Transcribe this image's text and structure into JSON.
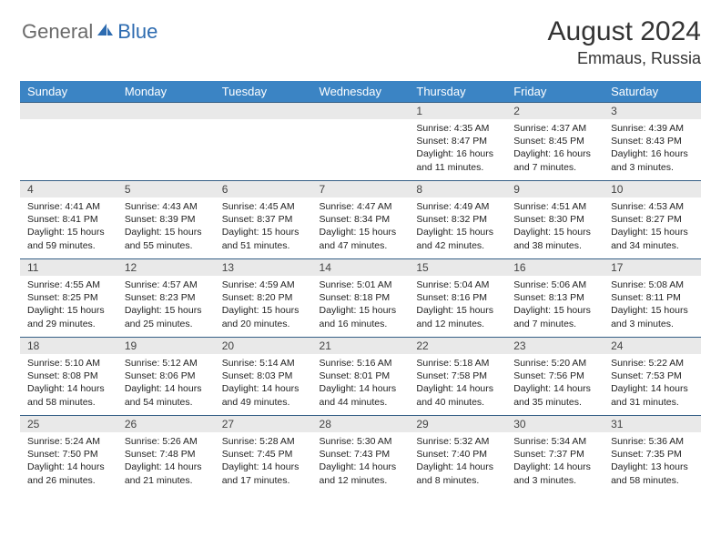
{
  "logo": {
    "gray": "General",
    "blue": "Blue"
  },
  "header": {
    "month_year": "August 2024",
    "location": "Emmaus, Russia"
  },
  "colors": {
    "header_bg": "#3b84c4",
    "header_fg": "#ffffff",
    "daynum_bg": "#e9e9e9",
    "rule": "#355f86"
  },
  "weekdays": [
    "Sunday",
    "Monday",
    "Tuesday",
    "Wednesday",
    "Thursday",
    "Friday",
    "Saturday"
  ],
  "weeks": [
    [
      null,
      null,
      null,
      null,
      {
        "n": "1",
        "sr": "Sunrise: 4:35 AM",
        "ss": "Sunset: 8:47 PM",
        "d1": "Daylight: 16 hours",
        "d2": "and 11 minutes."
      },
      {
        "n": "2",
        "sr": "Sunrise: 4:37 AM",
        "ss": "Sunset: 8:45 PM",
        "d1": "Daylight: 16 hours",
        "d2": "and 7 minutes."
      },
      {
        "n": "3",
        "sr": "Sunrise: 4:39 AM",
        "ss": "Sunset: 8:43 PM",
        "d1": "Daylight: 16 hours",
        "d2": "and 3 minutes."
      }
    ],
    [
      {
        "n": "4",
        "sr": "Sunrise: 4:41 AM",
        "ss": "Sunset: 8:41 PM",
        "d1": "Daylight: 15 hours",
        "d2": "and 59 minutes."
      },
      {
        "n": "5",
        "sr": "Sunrise: 4:43 AM",
        "ss": "Sunset: 8:39 PM",
        "d1": "Daylight: 15 hours",
        "d2": "and 55 minutes."
      },
      {
        "n": "6",
        "sr": "Sunrise: 4:45 AM",
        "ss": "Sunset: 8:37 PM",
        "d1": "Daylight: 15 hours",
        "d2": "and 51 minutes."
      },
      {
        "n": "7",
        "sr": "Sunrise: 4:47 AM",
        "ss": "Sunset: 8:34 PM",
        "d1": "Daylight: 15 hours",
        "d2": "and 47 minutes."
      },
      {
        "n": "8",
        "sr": "Sunrise: 4:49 AM",
        "ss": "Sunset: 8:32 PM",
        "d1": "Daylight: 15 hours",
        "d2": "and 42 minutes."
      },
      {
        "n": "9",
        "sr": "Sunrise: 4:51 AM",
        "ss": "Sunset: 8:30 PM",
        "d1": "Daylight: 15 hours",
        "d2": "and 38 minutes."
      },
      {
        "n": "10",
        "sr": "Sunrise: 4:53 AM",
        "ss": "Sunset: 8:27 PM",
        "d1": "Daylight: 15 hours",
        "d2": "and 34 minutes."
      }
    ],
    [
      {
        "n": "11",
        "sr": "Sunrise: 4:55 AM",
        "ss": "Sunset: 8:25 PM",
        "d1": "Daylight: 15 hours",
        "d2": "and 29 minutes."
      },
      {
        "n": "12",
        "sr": "Sunrise: 4:57 AM",
        "ss": "Sunset: 8:23 PM",
        "d1": "Daylight: 15 hours",
        "d2": "and 25 minutes."
      },
      {
        "n": "13",
        "sr": "Sunrise: 4:59 AM",
        "ss": "Sunset: 8:20 PM",
        "d1": "Daylight: 15 hours",
        "d2": "and 20 minutes."
      },
      {
        "n": "14",
        "sr": "Sunrise: 5:01 AM",
        "ss": "Sunset: 8:18 PM",
        "d1": "Daylight: 15 hours",
        "d2": "and 16 minutes."
      },
      {
        "n": "15",
        "sr": "Sunrise: 5:04 AM",
        "ss": "Sunset: 8:16 PM",
        "d1": "Daylight: 15 hours",
        "d2": "and 12 minutes."
      },
      {
        "n": "16",
        "sr": "Sunrise: 5:06 AM",
        "ss": "Sunset: 8:13 PM",
        "d1": "Daylight: 15 hours",
        "d2": "and 7 minutes."
      },
      {
        "n": "17",
        "sr": "Sunrise: 5:08 AM",
        "ss": "Sunset: 8:11 PM",
        "d1": "Daylight: 15 hours",
        "d2": "and 3 minutes."
      }
    ],
    [
      {
        "n": "18",
        "sr": "Sunrise: 5:10 AM",
        "ss": "Sunset: 8:08 PM",
        "d1": "Daylight: 14 hours",
        "d2": "and 58 minutes."
      },
      {
        "n": "19",
        "sr": "Sunrise: 5:12 AM",
        "ss": "Sunset: 8:06 PM",
        "d1": "Daylight: 14 hours",
        "d2": "and 54 minutes."
      },
      {
        "n": "20",
        "sr": "Sunrise: 5:14 AM",
        "ss": "Sunset: 8:03 PM",
        "d1": "Daylight: 14 hours",
        "d2": "and 49 minutes."
      },
      {
        "n": "21",
        "sr": "Sunrise: 5:16 AM",
        "ss": "Sunset: 8:01 PM",
        "d1": "Daylight: 14 hours",
        "d2": "and 44 minutes."
      },
      {
        "n": "22",
        "sr": "Sunrise: 5:18 AM",
        "ss": "Sunset: 7:58 PM",
        "d1": "Daylight: 14 hours",
        "d2": "and 40 minutes."
      },
      {
        "n": "23",
        "sr": "Sunrise: 5:20 AM",
        "ss": "Sunset: 7:56 PM",
        "d1": "Daylight: 14 hours",
        "d2": "and 35 minutes."
      },
      {
        "n": "24",
        "sr": "Sunrise: 5:22 AM",
        "ss": "Sunset: 7:53 PM",
        "d1": "Daylight: 14 hours",
        "d2": "and 31 minutes."
      }
    ],
    [
      {
        "n": "25",
        "sr": "Sunrise: 5:24 AM",
        "ss": "Sunset: 7:50 PM",
        "d1": "Daylight: 14 hours",
        "d2": "and 26 minutes."
      },
      {
        "n": "26",
        "sr": "Sunrise: 5:26 AM",
        "ss": "Sunset: 7:48 PM",
        "d1": "Daylight: 14 hours",
        "d2": "and 21 minutes."
      },
      {
        "n": "27",
        "sr": "Sunrise: 5:28 AM",
        "ss": "Sunset: 7:45 PM",
        "d1": "Daylight: 14 hours",
        "d2": "and 17 minutes."
      },
      {
        "n": "28",
        "sr": "Sunrise: 5:30 AM",
        "ss": "Sunset: 7:43 PM",
        "d1": "Daylight: 14 hours",
        "d2": "and 12 minutes."
      },
      {
        "n": "29",
        "sr": "Sunrise: 5:32 AM",
        "ss": "Sunset: 7:40 PM",
        "d1": "Daylight: 14 hours",
        "d2": "and 8 minutes."
      },
      {
        "n": "30",
        "sr": "Sunrise: 5:34 AM",
        "ss": "Sunset: 7:37 PM",
        "d1": "Daylight: 14 hours",
        "d2": "and 3 minutes."
      },
      {
        "n": "31",
        "sr": "Sunrise: 5:36 AM",
        "ss": "Sunset: 7:35 PM",
        "d1": "Daylight: 13 hours",
        "d2": "and 58 minutes."
      }
    ]
  ]
}
